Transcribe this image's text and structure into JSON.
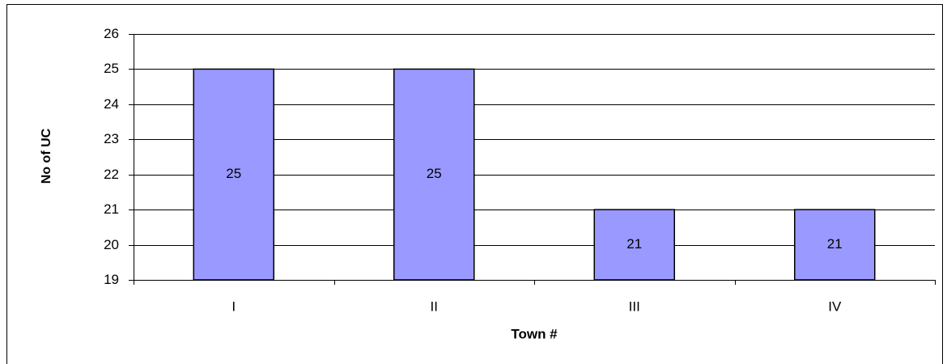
{
  "chart_data": {
    "type": "bar",
    "x_label": "Town #",
    "y_label": "No of UC",
    "categories": [
      "I",
      "II",
      "III",
      "IV"
    ],
    "values": [
      25,
      25,
      21,
      21
    ],
    "color": "#9999ff",
    "ylim": [
      19,
      26
    ],
    "yticks": [
      19,
      20,
      21,
      22,
      23,
      24,
      25,
      26
    ],
    "grid": true
  }
}
